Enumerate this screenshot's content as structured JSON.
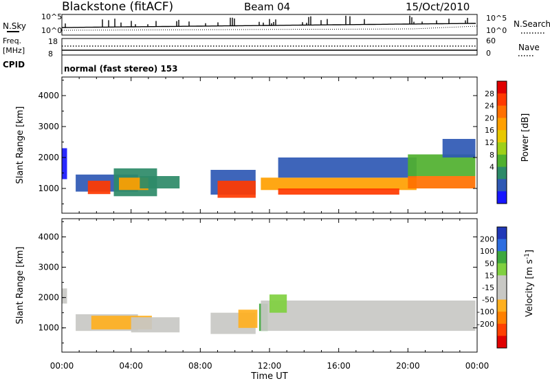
{
  "header": {
    "station": "Blackstone (fitACF)",
    "beam": "Beam 04",
    "date": "15/Oct/2010"
  },
  "top_panels": {
    "nsky_label": "N.Sky",
    "nsky_ticks": [
      "10^5",
      "10^0"
    ],
    "nsearch_label": "N.Search",
    "nsearch_ticks": [
      "10^5",
      "10^0"
    ],
    "freq_label": "Freq.",
    "freq_unit": "[MHz]",
    "freq_ticks": [
      "18",
      "8"
    ],
    "nave_label": "Nave",
    "nave_ticks": [
      "60",
      "0"
    ],
    "cpid_label": "CPID",
    "cpid_value": "normal (fast stereo) 153"
  },
  "chart_data": [
    {
      "type": "heatmap",
      "panel": "power",
      "ylabel": "Slant Range [km]",
      "xlabel": "Time UT",
      "ylim": [
        200,
        4600
      ],
      "yticks": [
        "4000",
        "3000",
        "2000",
        "1000"
      ],
      "xticks": [
        "00:00",
        "04:00",
        "08:00",
        "12:00",
        "16:00",
        "20:00",
        "00:00"
      ],
      "colorbar": {
        "label": "Power [dB]",
        "ticks": [
          "28",
          "24",
          "20",
          "16",
          "12",
          "8",
          "4"
        ],
        "colors": [
          "#e00000",
          "#ff3a00",
          "#ff7000",
          "#ffa000",
          "#e8c800",
          "#9ed018",
          "#4fb02e",
          "#2c8a68",
          "#2e58b4",
          "#1616ff"
        ]
      },
      "regions": [
        {
          "t": [
            0.0,
            0.3
          ],
          "r": [
            1300,
            2300
          ],
          "level": 4
        },
        {
          "t": [
            0.8,
            4.4
          ],
          "r": [
            900,
            1450
          ],
          "level": 6
        },
        {
          "t": [
            1.5,
            2.8
          ],
          "r": [
            820,
            1250
          ],
          "level": 26
        },
        {
          "t": [
            3.0,
            5.5
          ],
          "r": [
            750,
            1650
          ],
          "level": 9
        },
        {
          "t": [
            3.3,
            5.0
          ],
          "r": [
            950,
            1350
          ],
          "level": 20
        },
        {
          "t": [
            4.5,
            6.8
          ],
          "r": [
            1000,
            1400
          ],
          "level": 8
        },
        {
          "t": [
            8.6,
            11.2
          ],
          "r": [
            800,
            1600
          ],
          "level": 7
        },
        {
          "t": [
            9.0,
            11.2
          ],
          "r": [
            700,
            1250
          ],
          "level": 26
        },
        {
          "t": [
            11.5,
            20.5
          ],
          "r": [
            950,
            1350
          ],
          "level": 22
        },
        {
          "t": [
            12.5,
            19.5
          ],
          "r": [
            800,
            1000
          ],
          "level": 27
        },
        {
          "t": [
            12.5,
            20.5
          ],
          "r": [
            1350,
            2000
          ],
          "level": 6
        },
        {
          "t": [
            20.0,
            23.9
          ],
          "r": [
            1000,
            1400
          ],
          "level": 25
        },
        {
          "t": [
            20.0,
            23.9
          ],
          "r": [
            1400,
            2100
          ],
          "level": 12
        },
        {
          "t": [
            22.0,
            23.9
          ],
          "r": [
            2000,
            2600
          ],
          "level": 5
        }
      ]
    },
    {
      "type": "heatmap",
      "panel": "velocity",
      "ylabel": "Slant Range [km]",
      "xlabel": "Time UT",
      "ylim": [
        200,
        4600
      ],
      "yticks": [
        "4000",
        "3000",
        "2000",
        "1000"
      ],
      "xticks": [
        "00:00",
        "04:00",
        "08:00",
        "12:00",
        "16:00",
        "20:00",
        "00:00"
      ],
      "colorbar": {
        "label": "Velocity [m s^-1]",
        "ticks": [
          "200",
          "100",
          "50",
          "15",
          "-15",
          "-50",
          "-100",
          "-200"
        ],
        "colors": [
          "#2038b8",
          "#2e6ee0",
          "#3ea83e",
          "#80d040",
          "#c8c8c4",
          "#c8c8c4",
          "#ffb020",
          "#ff8000",
          "#ff4000",
          "#e00000"
        ]
      },
      "regions": [
        {
          "t": [
            0.0,
            0.3
          ],
          "r": [
            1800,
            2300
          ],
          "level": 0
        },
        {
          "t": [
            0.8,
            4.4
          ],
          "r": [
            900,
            1450
          ],
          "level": 0
        },
        {
          "t": [
            1.7,
            5.2
          ],
          "r": [
            950,
            1400
          ],
          "level": -40
        },
        {
          "t": [
            4.0,
            6.8
          ],
          "r": [
            850,
            1350
          ],
          "level": 0
        },
        {
          "t": [
            8.6,
            11.2
          ],
          "r": [
            800,
            1500
          ],
          "level": 0
        },
        {
          "t": [
            10.2,
            11.3
          ],
          "r": [
            1000,
            1600
          ],
          "level": -40
        },
        {
          "t": [
            11.4,
            11.9
          ],
          "r": [
            900,
            1800
          ],
          "level": 60
        },
        {
          "t": [
            11.5,
            23.9
          ],
          "r": [
            900,
            1900
          ],
          "level": 0
        },
        {
          "t": [
            12.0,
            13.0
          ],
          "r": [
            1500,
            2100
          ],
          "level": 30
        }
      ]
    }
  ]
}
